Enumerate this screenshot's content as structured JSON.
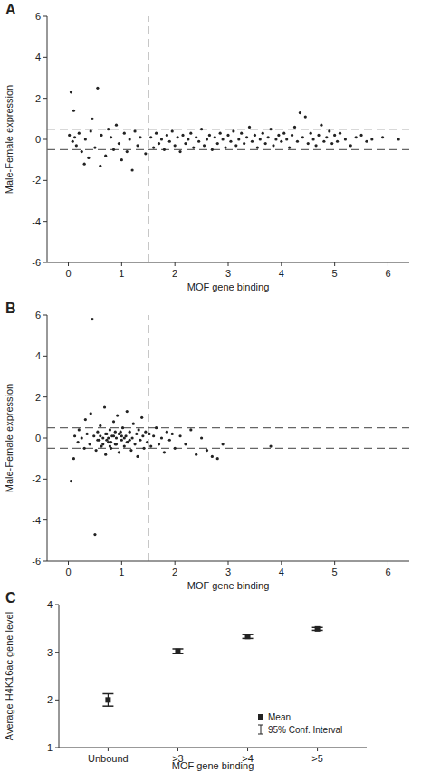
{
  "chart_data": [
    {
      "type": "scatter",
      "title": "A",
      "xlabel": "MOF gene binding",
      "ylabel": "Male-Female expression",
      "color": "#222222",
      "marker": "circle",
      "xlim": [
        -0.4,
        6.4
      ],
      "ylim": [
        -6,
        6
      ],
      "xticks": [
        0,
        1,
        2,
        3,
        4,
        5,
        6
      ],
      "yticks": [
        -6,
        -4,
        -2,
        0,
        2,
        4,
        6
      ],
      "vlines": [
        1.5
      ],
      "hlines": [
        -0.5,
        0.5
      ],
      "x": [
        0.02,
        0.05,
        0.08,
        0.1,
        0.12,
        0.15,
        0.2,
        0.25,
        0.3,
        0.32,
        0.38,
        0.42,
        0.45,
        0.5,
        0.55,
        0.6,
        0.62,
        0.7,
        0.75,
        0.8,
        0.85,
        0.9,
        0.95,
        1.0,
        1.05,
        1.1,
        1.15,
        1.2,
        1.25,
        1.3,
        1.35,
        1.45,
        1.55,
        1.6,
        1.65,
        1.7,
        1.75,
        1.8,
        1.85,
        1.9,
        1.95,
        2.0,
        2.05,
        2.1,
        2.15,
        2.2,
        2.25,
        2.3,
        2.35,
        2.4,
        2.45,
        2.5,
        2.55,
        2.6,
        2.65,
        2.7,
        2.75,
        2.8,
        2.85,
        2.9,
        2.95,
        3.0,
        3.05,
        3.1,
        3.15,
        3.2,
        3.25,
        3.3,
        3.35,
        3.4,
        3.45,
        3.5,
        3.55,
        3.6,
        3.65,
        3.7,
        3.75,
        3.8,
        3.85,
        3.9,
        3.95,
        4.0,
        4.05,
        4.1,
        4.15,
        4.2,
        4.25,
        4.3,
        4.35,
        4.4,
        4.45,
        4.5,
        4.55,
        4.6,
        4.65,
        4.7,
        4.75,
        4.8,
        4.85,
        4.9,
        4.95,
        5.0,
        5.05,
        5.1,
        5.2,
        5.3,
        5.4,
        5.5,
        5.6,
        5.7,
        5.9,
        6.2
      ],
      "values": [
        0.2,
        2.3,
        -0.1,
        1.4,
        0.1,
        -0.3,
        0.3,
        -0.6,
        -1.2,
        0.0,
        -0.9,
        0.4,
        1.0,
        -0.4,
        2.5,
        -1.3,
        0.2,
        -0.8,
        0.5,
        0.1,
        -0.5,
        0.7,
        -0.2,
        -1.0,
        0.3,
        -0.6,
        0.0,
        -1.5,
        0.4,
        -0.3,
        0.1,
        -0.7,
        0.1,
        -0.4,
        0.3,
        -0.2,
        0.0,
        -0.5,
        0.2,
        -0.1,
        0.4,
        -0.3,
        0.1,
        -0.6,
        0.2,
        -0.2,
        0.0,
        0.3,
        -0.4,
        0.1,
        -0.1,
        0.5,
        -0.3,
        0.0,
        0.2,
        -0.5,
        0.1,
        -0.2,
        0.3,
        0.0,
        -0.4,
        0.2,
        -0.1,
        0.4,
        -0.3,
        0.0,
        0.3,
        -0.2,
        0.1,
        0.6,
        -0.1,
        0.2,
        -0.4,
        0.0,
        0.3,
        -0.2,
        0.1,
        0.5,
        -0.3,
        0.0,
        0.2,
        -0.1,
        0.3,
        0.0,
        -0.4,
        0.2,
        0.6,
        -0.1,
        1.3,
        0.1,
        1.1,
        -0.2,
        0.3,
        0.0,
        -0.3,
        0.2,
        0.7,
        -0.1,
        0.1,
        0.4,
        -0.2,
        0.2,
        -0.1,
        0.3,
        0.0,
        -0.3,
        0.1,
        0.2,
        -0.1,
        0.0,
        0.1,
        0.0
      ]
    },
    {
      "type": "scatter",
      "title": "B",
      "xlabel": "MOF gene binding",
      "ylabel": "Male-Female expression",
      "color": "#222222",
      "marker": "circle",
      "xlim": [
        -0.4,
        6.4
      ],
      "ylim": [
        -6,
        6
      ],
      "xticks": [
        0,
        1,
        2,
        3,
        4,
        5,
        6
      ],
      "yticks": [
        -6,
        -4,
        -2,
        0,
        2,
        4,
        6
      ],
      "vlines": [
        1.5
      ],
      "hlines": [
        -0.5,
        0.5
      ],
      "x": [
        0.05,
        0.1,
        0.12,
        0.18,
        0.2,
        0.25,
        0.3,
        0.32,
        0.35,
        0.4,
        0.42,
        0.45,
        0.48,
        0.5,
        0.52,
        0.55,
        0.58,
        0.6,
        0.62,
        0.65,
        0.68,
        0.7,
        0.72,
        0.75,
        0.78,
        0.8,
        0.82,
        0.85,
        0.88,
        0.9,
        0.92,
        0.95,
        0.98,
        1.0,
        1.02,
        1.05,
        1.08,
        1.1,
        1.12,
        1.15,
        1.18,
        1.2,
        1.22,
        1.25,
        1.28,
        1.3,
        1.32,
        1.35,
        1.38,
        1.4,
        1.42,
        1.45,
        1.48,
        1.52,
        1.55,
        1.6,
        1.65,
        1.7,
        1.75,
        1.8,
        1.85,
        1.9,
        1.95,
        2.0,
        2.1,
        2.2,
        2.3,
        2.4,
        2.5,
        2.6,
        2.7,
        2.8,
        2.9,
        3.8,
        0.55,
        0.6,
        0.7,
        0.75,
        0.8,
        0.85,
        0.9,
        0.95,
        1.0,
        1.05,
        1.1,
        0.65,
        0.72,
        0.88,
        0.78,
        1.15
      ],
      "values": [
        -2.1,
        -1.0,
        0.1,
        -0.2,
        0.4,
        0.0,
        -0.5,
        0.9,
        0.2,
        -0.3,
        1.2,
        5.8,
        0.1,
        -4.7,
        -0.6,
        0.3,
        -0.1,
        0.6,
        -0.4,
        0.0,
        1.5,
        -0.8,
        0.2,
        -0.2,
        0.4,
        -0.5,
        0.1,
        0.8,
        -0.3,
        0.0,
        1.1,
        -0.7,
        0.3,
        -0.1,
        0.5,
        -0.4,
        0.1,
        1.3,
        -0.2,
        0.3,
        -0.6,
        0.0,
        0.7,
        -0.3,
        0.2,
        -0.9,
        0.4,
        -0.1,
        1.0,
        0.1,
        -0.5,
        0.3,
        -0.2,
        0.2,
        -0.4,
        0.1,
        0.5,
        -0.3,
        0.0,
        -0.7,
        0.3,
        -0.1,
        0.2,
        -0.5,
        0.1,
        -0.3,
        0.4,
        -0.8,
        0.0,
        -0.6,
        -0.9,
        -1.0,
        -0.3,
        -0.4,
        -0.1,
        0.1,
        0.2,
        0.0,
        -0.2,
        0.1,
        -0.3,
        0.2,
        0.1,
        0.0,
        -0.2,
        -0.3,
        -0.1,
        0.3,
        -0.4,
        -0.1
      ]
    },
    {
      "type": "errorbar",
      "title": "C",
      "xlabel": "MOF gene binding",
      "ylabel": "Average H4K16ac gene level",
      "categories": [
        "Unbound",
        ">3",
        ">4",
        ">5"
      ],
      "ylim": [
        1,
        4
      ],
      "yticks": [
        1,
        2,
        3,
        4
      ],
      "legend": "lower right",
      "error_label": "95% Conf. Interval",
      "series": [
        {
          "name": "Mean",
          "color": "#222222",
          "marker": "square",
          "values": [
            2.0,
            3.02,
            3.33,
            3.49
          ],
          "error": [
            0.13,
            0.05,
            0.04,
            0.03
          ]
        }
      ]
    }
  ]
}
